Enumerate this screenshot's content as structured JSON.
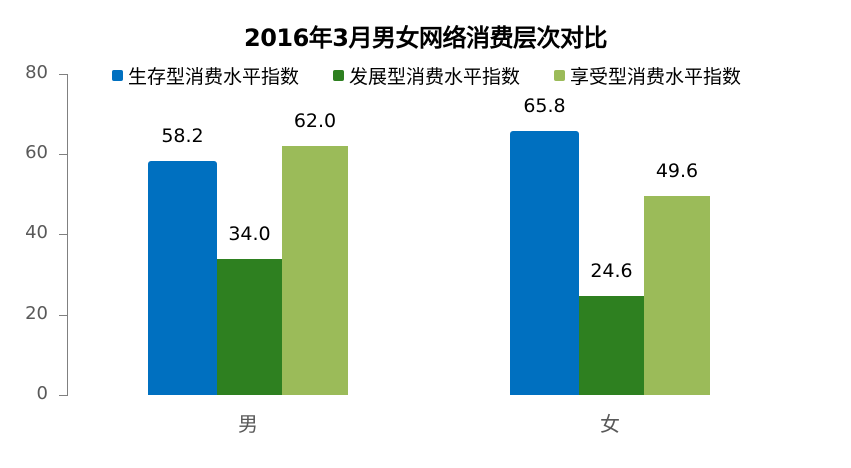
{
  "chart_data": {
    "type": "bar",
    "title": "2016年3月男女网络消费层次对比",
    "categories": [
      "男",
      "女"
    ],
    "series": [
      {
        "name": "生存型消费水平指数",
        "color": "#0070C0",
        "values": [
          58.2,
          65.8
        ]
      },
      {
        "name": "发展型消费水平指数",
        "color": "#2E8020",
        "values": [
          34.0,
          24.6
        ]
      },
      {
        "name": "享受型消费水平指数",
        "color": "#9BBB59",
        "values": [
          62.0,
          49.6
        ]
      }
    ],
    "data_labels": [
      [
        "58.2",
        "65.8"
      ],
      [
        "34.0",
        "24.6"
      ],
      [
        "62.0",
        "49.6"
      ]
    ],
    "xlabel": "",
    "ylabel": "",
    "ylim": [
      0,
      80
    ],
    "yticks": [
      "0",
      "20",
      "40",
      "60",
      "80"
    ],
    "grid": false,
    "legend_position": "top"
  }
}
